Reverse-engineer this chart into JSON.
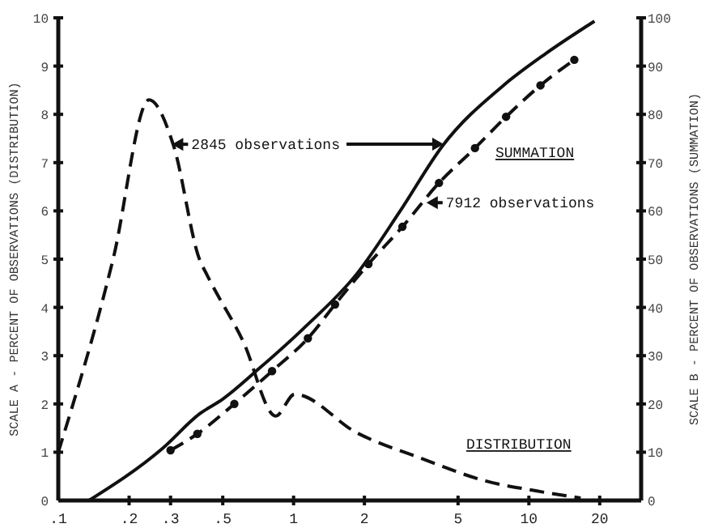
{
  "chart_data": {
    "type": "line",
    "ylabel": "SCALE A - PERCENT OF OBSERVATIONS (DISTRIBUTION)",
    "y2label": "SCALE B - PERCENT OF OBSERVATIONS (SUMMATION)",
    "annotations": [
      {
        "text": "2845 observations",
        "x": 0.304,
        "y": 7.38
      },
      {
        "text": "7912 observations",
        "x": 3.67,
        "y": 6.17
      },
      "SUMMATION",
      "DISTRIBUTION"
    ],
    "log": "x",
    "grid": false,
    "xlim": [
      0.1,
      30
    ],
    "xticks": [
      {
        "value": 0.1,
        "label": ".1"
      },
      {
        "value": 0.2,
        "label": ".2"
      },
      {
        "value": 0.3,
        "label": ".3"
      },
      {
        "value": 0.5,
        "label": ".5"
      },
      1,
      2,
      5,
      10,
      20
    ],
    "ylim": [
      0,
      10
    ],
    "yticks": [
      0,
      1,
      2,
      3,
      4,
      5,
      6,
      7,
      8,
      9,
      10
    ],
    "y2lim": [
      0,
      100
    ],
    "y2ticks": [
      0,
      10,
      20,
      30,
      40,
      50,
      60,
      70,
      80,
      90,
      100
    ],
    "series": [
      {
        "color": "#111111",
        "line_style": "dashed",
        "marker": "none",
        "x": [
          0.1,
          0.171,
          0.243,
          0.309,
          0.398,
          0.43,
          0.61,
          0.84,
          1.01,
          1.86,
          3.5,
          6.6,
          10.7,
          16.6
        ],
        "values": [
          1.0,
          5.0,
          8.3,
          7.35,
          5.0,
          4.66,
          3.3,
          1.75,
          2.2,
          1.4,
          0.87,
          0.4,
          0.2,
          0.05
        ]
      },
      {
        "color": "#111111",
        "line_style": "solid",
        "marker": "none",
        "axis": "y2",
        "x": [
          0.135,
          0.276,
          0.4,
          0.5,
          0.72,
          1.1,
          1.86,
          2.84,
          4.3,
          7.8,
          11.8,
          19
        ],
        "values": [
          0,
          10.7,
          18,
          21,
          27.5,
          35.6,
          47,
          60,
          73.5,
          86,
          92.6,
          99.3
        ]
      },
      {
        "color": "#111111",
        "line_style": "dashed",
        "marker": "circle",
        "axis": "y2",
        "x": [
          0.3,
          0.39,
          0.56,
          0.81,
          1.15,
          1.5,
          2.08,
          2.9,
          4.15,
          5.9,
          8.0,
          11.2,
          15.6
        ],
        "values": [
          10.4,
          13.8,
          20,
          26.8,
          33.6,
          40.6,
          49,
          56.7,
          65.8,
          73,
          79.5,
          86,
          91.3
        ]
      }
    ]
  }
}
